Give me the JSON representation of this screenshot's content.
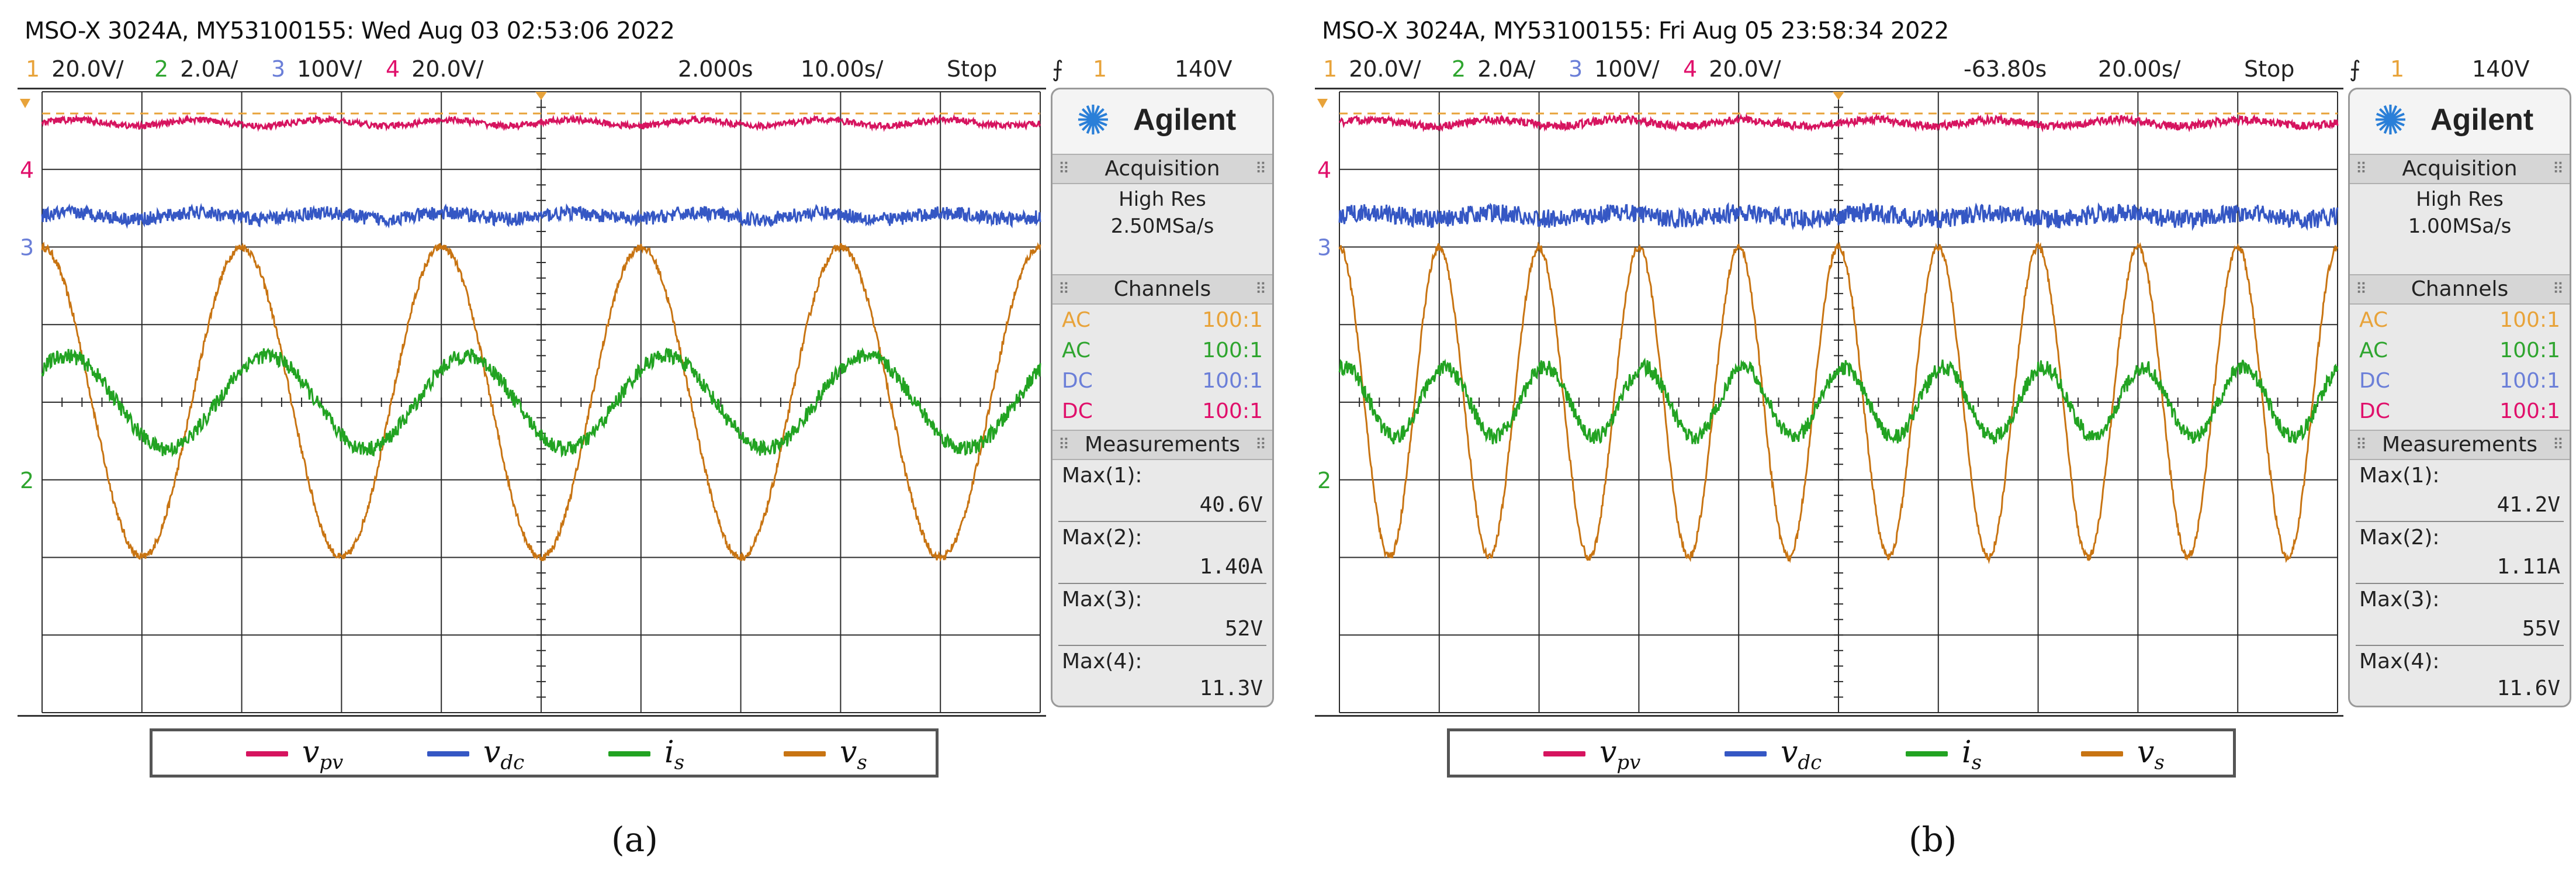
{
  "panels": [
    {
      "title": "MSO-X 3024A, MY53100155: Wed Aug 03 02:53:06 2022",
      "scales": [
        {
          "num": "1",
          "text": "20.0V/",
          "color": "#e8a33a"
        },
        {
          "num": "2",
          "text": "2.0A/",
          "color": "#2fa52f"
        },
        {
          "num": "3",
          "text": "100V/",
          "color": "#6b7fd8"
        },
        {
          "num": "4",
          "text": "20.0V/",
          "color": "#e0106b"
        }
      ],
      "time_delay": "2.000s",
      "time_scale": "10.00s/",
      "run_state": "Stop",
      "trigger_icon": "trigger-rising-edge-icon",
      "trigger_channel": "1",
      "trigger_level": "140V",
      "brand": "Agilent",
      "acquisition_header": "Acquisition",
      "acquisition_mode": "High Res",
      "sample_rate": "2.50MSa/s",
      "channels_header": "Channels",
      "channels": [
        {
          "coupling": "AC",
          "probe": "100:1",
          "color": "#e8a33a"
        },
        {
          "coupling": "AC",
          "probe": "100:1",
          "color": "#2fa52f"
        },
        {
          "coupling": "DC",
          "probe": "100:1",
          "color": "#6b7fd8"
        },
        {
          "coupling": "DC",
          "probe": "100:1",
          "color": "#e0106b"
        }
      ],
      "measurements_header": "Measurements",
      "measurements": [
        {
          "label": "Max(1):",
          "value": "40.6V"
        },
        {
          "label": "Max(2):",
          "value": "1.40A"
        },
        {
          "label": "Max(3):",
          "value": "52V"
        },
        {
          "label": "Max(4):",
          "value": "11.3V"
        }
      ],
      "marker_labels": {
        "ch4": "4",
        "ch3": "3",
        "ch2": "2"
      },
      "caption": "(a)"
    },
    {
      "title": "MSO-X 3024A, MY53100155: Fri Aug 05 23:58:34 2022",
      "scales": [
        {
          "num": "1",
          "text": "20.0V/",
          "color": "#e8a33a"
        },
        {
          "num": "2",
          "text": "2.0A/",
          "color": "#2fa52f"
        },
        {
          "num": "3",
          "text": "100V/",
          "color": "#6b7fd8"
        },
        {
          "num": "4",
          "text": "20.0V/",
          "color": "#e0106b"
        }
      ],
      "time_delay": "-63.80s",
      "time_scale": "20.00s/",
      "run_state": "Stop",
      "trigger_icon": "trigger-rising-edge-icon",
      "trigger_channel": "1",
      "trigger_level": "140V",
      "brand": "Agilent",
      "acquisition_header": "Acquisition",
      "acquisition_mode": "High Res",
      "sample_rate": "1.00MSa/s",
      "channels_header": "Channels",
      "channels": [
        {
          "coupling": "AC",
          "probe": "100:1",
          "color": "#e8a33a"
        },
        {
          "coupling": "AC",
          "probe": "100:1",
          "color": "#2fa52f"
        },
        {
          "coupling": "DC",
          "probe": "100:1",
          "color": "#6b7fd8"
        },
        {
          "coupling": "DC",
          "probe": "100:1",
          "color": "#e0106b"
        }
      ],
      "measurements_header": "Measurements",
      "measurements": [
        {
          "label": "Max(1):",
          "value": "41.2V"
        },
        {
          "label": "Max(2):",
          "value": "1.11A"
        },
        {
          "label": "Max(3):",
          "value": "55V"
        },
        {
          "label": "Max(4):",
          "value": "11.6V"
        }
      ],
      "marker_labels": {
        "ch4": "4",
        "ch3": "3",
        "ch2": "2"
      },
      "caption": "(b)"
    }
  ],
  "legend": [
    {
      "symbol": "v",
      "sub": "pv",
      "color": "#d6145f"
    },
    {
      "symbol": "v",
      "sub": "dc",
      "color": "#3557c4"
    },
    {
      "symbol": "i",
      "sub": "s",
      "color": "#22a322"
    },
    {
      "symbol": "v",
      "sub": "s",
      "color": "#c87412"
    }
  ],
  "chart_data": [
    {
      "type": "line",
      "grid": true,
      "divisions_x": 10,
      "divisions_y": 8,
      "series": [
        {
          "name": "v_pv",
          "color": "#d6145f",
          "kind": "dc",
          "level_div": 3.6,
          "noise_div": 0.04
        },
        {
          "name": "v_dc",
          "color": "#3557c4",
          "kind": "dc",
          "level_div": 2.4,
          "noise_div": 0.09
        },
        {
          "name": "i_s",
          "color": "#22a322",
          "kind": "sine",
          "cycles": 5,
          "phase_deg": 45,
          "amp_div": 0.6,
          "noise_div": 0.1
        },
        {
          "name": "v_s",
          "color": "#c87412",
          "kind": "sine",
          "cycles": 5,
          "phase_deg": 90,
          "amp_div": 2.0,
          "noise_div": 0.05
        }
      ]
    },
    {
      "type": "line",
      "grid": true,
      "divisions_x": 10,
      "divisions_y": 8,
      "series": [
        {
          "name": "v_pv",
          "color": "#d6145f",
          "kind": "dc",
          "level_div": 3.6,
          "noise_div": 0.05
        },
        {
          "name": "v_dc",
          "color": "#3557c4",
          "kind": "dc",
          "level_div": 2.4,
          "noise_div": 0.12
        },
        {
          "name": "i_s",
          "color": "#22a322",
          "kind": "sine",
          "cycles": 10,
          "phase_deg": 70,
          "amp_div": 0.45,
          "noise_div": 0.1
        },
        {
          "name": "v_s",
          "color": "#c87412",
          "kind": "sine",
          "cycles": 10,
          "phase_deg": 90,
          "amp_div": 2.0,
          "noise_div": 0.05
        }
      ]
    }
  ]
}
